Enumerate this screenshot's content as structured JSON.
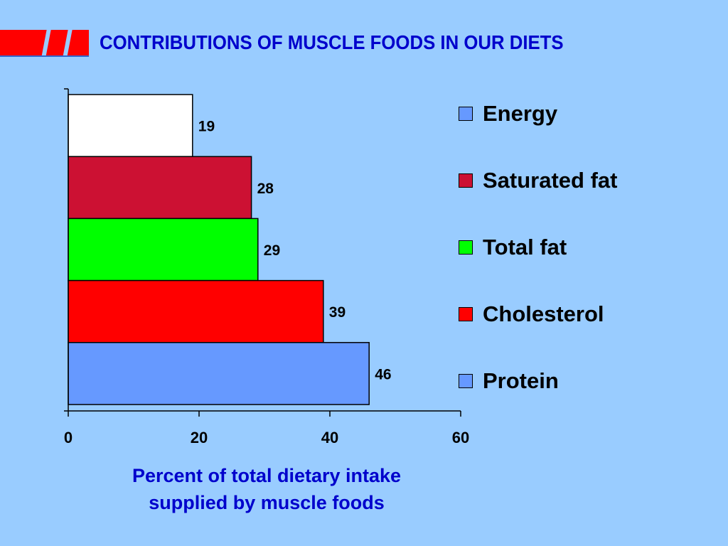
{
  "slide": {
    "title": "CONTRIBUTIONS OF MUSCLE FOODS IN OUR DIETS"
  },
  "colors": {
    "background": "#99ccff",
    "title": "#0000cc",
    "logo_red": "#ff0000"
  },
  "chart_data": {
    "type": "bar",
    "orientation": "horizontal",
    "categories": [
      "Energy",
      "Saturated fat",
      "Total fat",
      "Cholesterol",
      "Protein"
    ],
    "values": [
      19,
      28,
      29,
      39,
      46
    ],
    "bar_colors": [
      "#ffffff",
      "#cc1133",
      "#00ff00",
      "#ff0000",
      "#6699ff"
    ],
    "data_labels": [
      "19",
      "28",
      "29",
      "39",
      "46"
    ],
    "xlabel": "Percent of total dietary intake supplied by muscle foods",
    "xlabel_lines": [
      "Percent of total dietary intake",
      "supplied by muscle foods"
    ],
    "xlim": [
      0,
      60
    ],
    "xticks": [
      0,
      20,
      40,
      60
    ],
    "tick_labels": [
      "0",
      "20",
      "40",
      "60"
    ],
    "grid": false,
    "legend": {
      "placement": "right",
      "items": [
        {
          "label": "Energy",
          "color": "#6699ff"
        },
        {
          "label": "Saturated fat",
          "color": "#cc1133"
        },
        {
          "label": "Total fat",
          "color": "#00ff00"
        },
        {
          "label": "Cholesterol",
          "color": "#ff0000"
        },
        {
          "label": "Protein",
          "color": "#6699ff"
        }
      ]
    }
  }
}
